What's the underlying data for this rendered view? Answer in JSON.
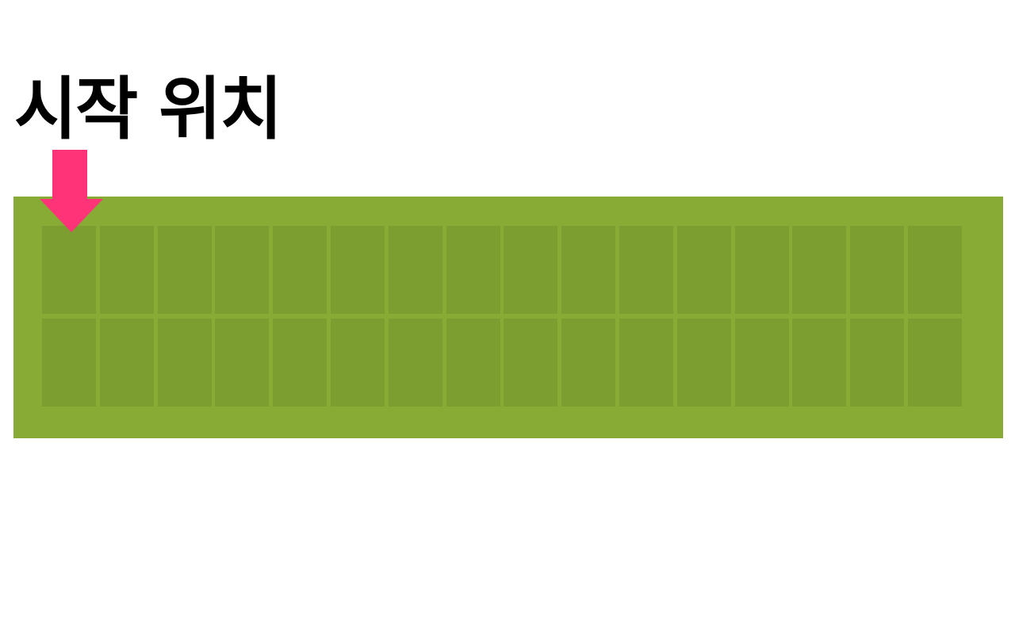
{
  "title": "시작 위치",
  "marker": {
    "icon": "down-arrow-icon",
    "color": "#ff3377",
    "points_to": {
      "row": 0,
      "column": 0
    }
  },
  "lcd": {
    "columns": 16,
    "rows": 2,
    "board_color": "#87ab35",
    "cell_color": "#7c9e30"
  }
}
